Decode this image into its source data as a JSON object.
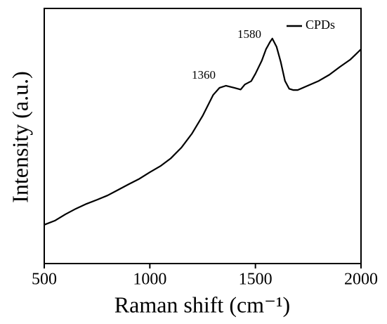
{
  "chart_data": {
    "type": "line",
    "xlabel": "Raman shift (cm⁻¹)",
    "ylabel": "Intensity (a.u.)",
    "x": [
      500,
      550,
      600,
      650,
      700,
      750,
      800,
      850,
      900,
      950,
      1000,
      1050,
      1100,
      1150,
      1200,
      1250,
      1300,
      1330,
      1360,
      1400,
      1430,
      1450,
      1480,
      1500,
      1530,
      1550,
      1570,
      1580,
      1600,
      1620,
      1640,
      1660,
      1680,
      1700,
      1750,
      1800,
      1850,
      1900,
      1950,
      2000
    ],
    "series": [
      {
        "name": "CPDs",
        "color": "#000000",
        "values": [
          15.2,
          16.8,
          19.3,
          21.5,
          23.4,
          25.0,
          26.7,
          28.9,
          31.1,
          33.2,
          35.8,
          38.2,
          41.3,
          45.5,
          51.0,
          57.9,
          66.1,
          68.9,
          69.7,
          68.9,
          68.2,
          70.2,
          71.5,
          74.4,
          79.5,
          84.0,
          87.0,
          88.2,
          85.0,
          79.0,
          71.6,
          68.5,
          68.0,
          68.0,
          69.8,
          71.6,
          74.0,
          77.1,
          80.0,
          84.0
        ]
      }
    ],
    "xlim": [
      500,
      2000
    ],
    "xticks": [
      500,
      1000,
      1500,
      2000
    ],
    "ylim": [
      0,
      100
    ],
    "annotations": [
      "1360",
      "1580"
    ],
    "legend": "upper right"
  }
}
